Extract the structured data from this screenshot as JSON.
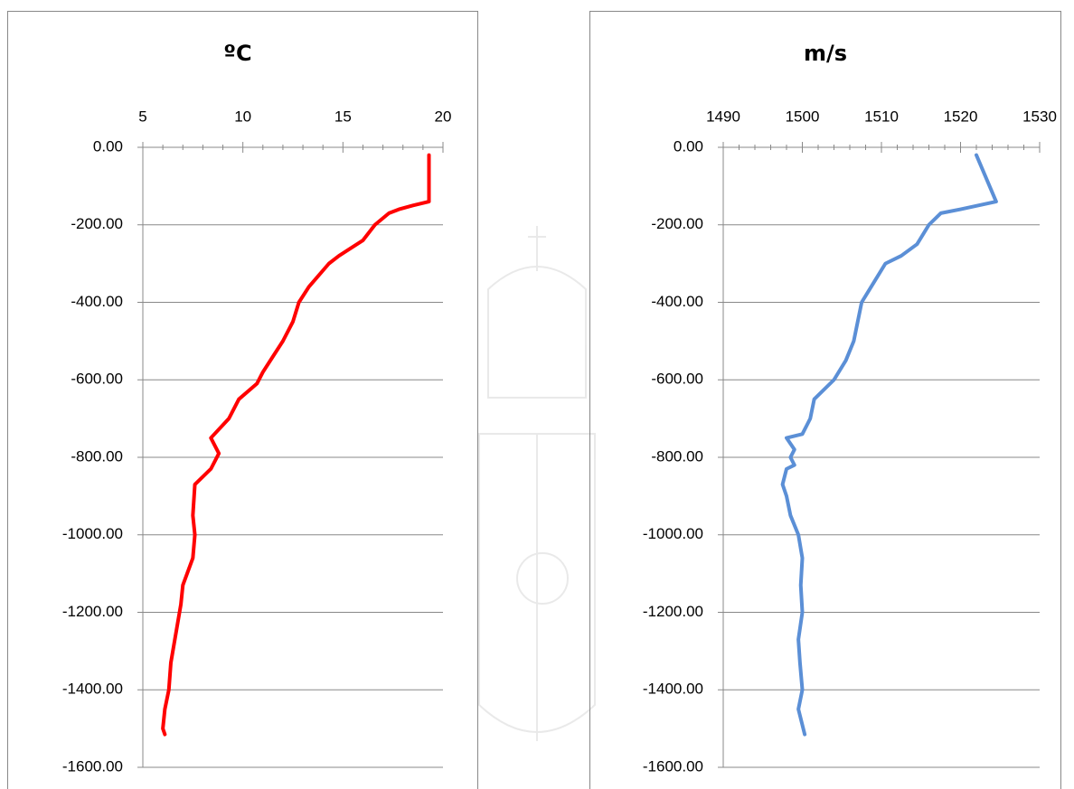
{
  "chart_data": [
    {
      "type": "line",
      "title": "ºC",
      "xlim": [
        5,
        20
      ],
      "xticks": [
        5,
        10,
        15,
        20
      ],
      "ylim": [
        -1600,
        0
      ],
      "yticks": [
        {
          "value": 0,
          "label": "0.00"
        },
        {
          "value": -200,
          "label": "-200.00"
        },
        {
          "value": -400,
          "label": "-400.00"
        },
        {
          "value": -600,
          "label": "-600.00"
        },
        {
          "value": -800,
          "label": "-800.00"
        },
        {
          "value": -1000,
          "label": "-1000.00"
        },
        {
          "value": -1200,
          "label": "-1200.00"
        },
        {
          "value": -1400,
          "label": "-1400.00"
        },
        {
          "value": -1600,
          "label": "-1600.00"
        }
      ],
      "grid": true,
      "series": [
        {
          "color": "#ff0000",
          "x": [
            19.3,
            19.3,
            18.5,
            17.8,
            17.3,
            16.6,
            16.0,
            14.8,
            14.3,
            13.3,
            12.8,
            12.5,
            12.0,
            11.5,
            11.0,
            10.7,
            9.8,
            9.3,
            8.4,
            8.8,
            8.4,
            7.6,
            7.5,
            7.6,
            7.5,
            7.0,
            6.9,
            6.6,
            6.4,
            6.3,
            6.1,
            6.0,
            6.1
          ],
          "values": [
            -20,
            -140,
            -150,
            -160,
            -170,
            -200,
            -240,
            -280,
            -300,
            -360,
            -400,
            -450,
            -500,
            -540,
            -580,
            -610,
            -650,
            -700,
            -750,
            -790,
            -830,
            -870,
            -950,
            -1000,
            -1060,
            -1130,
            -1180,
            -1270,
            -1330,
            -1400,
            -1450,
            -1500,
            -1515
          ]
        }
      ]
    },
    {
      "type": "line",
      "title": "m/s",
      "xlim": [
        1490,
        1530
      ],
      "xticks": [
        1490,
        1500,
        1510,
        1520,
        1530
      ],
      "ylim": [
        -1600,
        0
      ],
      "yticks": [
        {
          "value": 0,
          "label": "0.00"
        },
        {
          "value": -200,
          "label": "-200.00"
        },
        {
          "value": -400,
          "label": "-400.00"
        },
        {
          "value": -600,
          "label": "-600.00"
        },
        {
          "value": -800,
          "label": "-800.00"
        },
        {
          "value": -1000,
          "label": "-1000.00"
        },
        {
          "value": -1200,
          "label": "-1200.00"
        },
        {
          "value": -1400,
          "label": "-1400.00"
        },
        {
          "value": -1600,
          "label": "-1600.00"
        }
      ],
      "grid": true,
      "series": [
        {
          "color": "#5b8fd6",
          "x": [
            1522,
            1524.5,
            1520,
            1517.5,
            1516,
            1514.5,
            1512.5,
            1510.5,
            1509,
            1507.5,
            1507,
            1506.5,
            1505.5,
            1504,
            1501.5,
            1501,
            1500,
            1498,
            1499,
            1498.5,
            1499,
            1498,
            1497.5,
            1498,
            1498.5,
            1499.5,
            1500,
            1499.8,
            1500,
            1499.5,
            1499.7,
            1500,
            1499.5,
            1500.3
          ],
          "values": [
            -20,
            -140,
            -160,
            -170,
            -200,
            -250,
            -280,
            -300,
            -350,
            -400,
            -450,
            -500,
            -550,
            -600,
            -650,
            -700,
            -740,
            -750,
            -780,
            -800,
            -820,
            -830,
            -870,
            -900,
            -950,
            -1000,
            -1060,
            -1130,
            -1200,
            -1270,
            -1330,
            -1400,
            -1450,
            -1515
          ]
        }
      ]
    }
  ]
}
